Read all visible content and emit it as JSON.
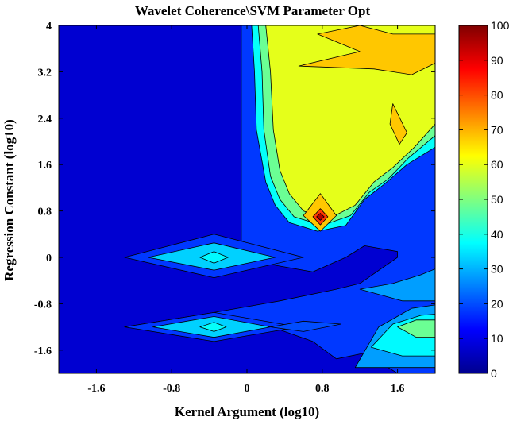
{
  "chart_data": {
    "type": "heatmap",
    "title": "Wavelet Coherence\\SVM Parameter Opt",
    "xlabel": "Kernel Argument (log10)",
    "ylabel": "Regression Constant (log10)",
    "xlim": [
      -2.0,
      2.0
    ],
    "ylim": [
      -2.0,
      4.0
    ],
    "xticks": [
      "-1.6",
      "-0.8",
      "0",
      "0.8",
      "1.6"
    ],
    "xtick_values": [
      -1.6,
      -0.8,
      0,
      0.8,
      1.6
    ],
    "yticks": [
      "4",
      "3.2",
      "2.4",
      "1.6",
      "0.8",
      "0",
      "-0.8",
      "-1.6"
    ],
    "ytick_values": [
      4,
      3.2,
      2.4,
      1.6,
      0.8,
      0,
      -0.8,
      -1.6
    ],
    "colorbar": {
      "range": [
        0,
        100
      ],
      "ticks": [
        "0",
        "10",
        "20",
        "30",
        "40",
        "50",
        "60",
        "70",
        "80",
        "90",
        "100"
      ],
      "tick_values": [
        0,
        10,
        20,
        30,
        40,
        50,
        60,
        70,
        80,
        90,
        100
      ],
      "colormap": "jet"
    },
    "regions": [
      {
        "level": 8,
        "points": [
          [
            -2,
            -2
          ],
          [
            2,
            -2
          ],
          [
            2,
            4
          ],
          [
            -2,
            4
          ]
        ]
      },
      {
        "level": 18,
        "points": [
          [
            -0.06,
            4
          ],
          [
            2,
            4
          ],
          [
            2,
            -2
          ],
          [
            1.6,
            -2
          ],
          [
            1.25,
            -1.65
          ],
          [
            0.95,
            -1.75
          ],
          [
            0.7,
            -1.45
          ],
          [
            0.35,
            -1.25
          ],
          [
            -0.35,
            -1.25
          ],
          [
            -1.3,
            -1.2
          ],
          [
            -0.35,
            -0.95
          ],
          [
            0.35,
            -0.75
          ],
          [
            0.95,
            -0.55
          ],
          [
            1.2,
            -0.45
          ],
          [
            1.6,
            0.0
          ],
          [
            1.6,
            0.1
          ],
          [
            1.25,
            0.2
          ],
          [
            1.05,
            0.0
          ],
          [
            0.7,
            -0.25
          ],
          [
            0.35,
            -0.15
          ],
          [
            -0.3,
            0.05
          ],
          [
            -0.06,
            0.25
          ]
        ]
      },
      {
        "level": 18,
        "points": [
          [
            -1.3,
            0.0
          ],
          [
            -0.35,
            0.4
          ],
          [
            0.6,
            0.0
          ],
          [
            -0.35,
            -0.35
          ]
        ]
      },
      {
        "level": 38,
        "points": [
          [
            0.05,
            4
          ],
          [
            2,
            4
          ],
          [
            2,
            1.9
          ],
          [
            1.7,
            1.6
          ],
          [
            1.45,
            1.25
          ],
          [
            1.25,
            1.0
          ],
          [
            1.05,
            0.55
          ],
          [
            0.75,
            0.45
          ],
          [
            0.45,
            0.6
          ],
          [
            0.3,
            0.9
          ],
          [
            0.2,
            1.3
          ],
          [
            0.1,
            2.2
          ],
          [
            0.08,
            3.2
          ]
        ]
      },
      {
        "level": 48,
        "points": [
          [
            0.12,
            4
          ],
          [
            2,
            4
          ],
          [
            2,
            2.1
          ],
          [
            1.72,
            1.72
          ],
          [
            1.5,
            1.35
          ],
          [
            1.3,
            1.12
          ],
          [
            1.1,
            0.72
          ],
          [
            0.8,
            0.55
          ],
          [
            0.5,
            0.7
          ],
          [
            0.35,
            1.0
          ],
          [
            0.25,
            1.4
          ],
          [
            0.18,
            2.2
          ],
          [
            0.16,
            3.2
          ]
        ]
      },
      {
        "level": 60,
        "points": [
          [
            0.2,
            4
          ],
          [
            2,
            4
          ],
          [
            2,
            2.3
          ],
          [
            1.78,
            1.9
          ],
          [
            1.55,
            1.55
          ],
          [
            1.35,
            1.3
          ],
          [
            1.15,
            0.9
          ],
          [
            0.85,
            0.65
          ],
          [
            0.6,
            0.8
          ],
          [
            0.45,
            1.1
          ],
          [
            0.35,
            1.5
          ],
          [
            0.28,
            2.2
          ],
          [
            0.25,
            3.2
          ]
        ]
      },
      {
        "level": 33,
        "points": [
          [
            -1.05,
            0.0
          ],
          [
            -0.35,
            0.25
          ],
          [
            0.3,
            0.0
          ],
          [
            -0.35,
            -0.22
          ]
        ]
      },
      {
        "level": 37,
        "points": [
          [
            -0.5,
            0.0
          ],
          [
            -0.35,
            0.1
          ],
          [
            -0.2,
            0.0
          ],
          [
            -0.35,
            -0.1
          ]
        ]
      },
      {
        "level": 18,
        "points": [
          [
            -1.3,
            -1.2
          ],
          [
            -0.35,
            -0.95
          ],
          [
            0.55,
            -1.2
          ],
          [
            -0.35,
            -1.45
          ]
        ]
      },
      {
        "level": 33,
        "points": [
          [
            -1.0,
            -1.2
          ],
          [
            -0.35,
            -1.02
          ],
          [
            0.25,
            -1.2
          ],
          [
            -0.35,
            -1.38
          ]
        ]
      },
      {
        "level": 38,
        "points": [
          [
            -0.5,
            -1.2
          ],
          [
            -0.35,
            -1.12
          ],
          [
            -0.22,
            -1.2
          ],
          [
            -0.35,
            -1.28
          ]
        ]
      },
      {
        "level": 20,
        "points": [
          [
            0.25,
            -1.2
          ],
          [
            0.6,
            -1.1
          ],
          [
            1.0,
            -1.15
          ],
          [
            0.6,
            -1.28
          ]
        ]
      },
      {
        "level": 28,
        "points": [
          [
            1.15,
            -1.9
          ],
          [
            1.4,
            -1.2
          ],
          [
            1.75,
            -0.88
          ],
          [
            2,
            -0.82
          ],
          [
            2,
            -1.9
          ]
        ]
      },
      {
        "level": 37,
        "points": [
          [
            1.32,
            -1.55
          ],
          [
            1.55,
            -1.15
          ],
          [
            1.85,
            -1.0
          ],
          [
            2,
            -0.98
          ],
          [
            2,
            -1.7
          ],
          [
            1.65,
            -1.7
          ]
        ]
      },
      {
        "level": 48,
        "points": [
          [
            1.6,
            -1.2
          ],
          [
            1.8,
            -1.08
          ],
          [
            2,
            -1.08
          ],
          [
            2,
            -1.38
          ],
          [
            1.8,
            -1.38
          ]
        ]
      },
      {
        "level": 28,
        "points": [
          [
            1.2,
            -0.55
          ],
          [
            1.55,
            -0.45
          ],
          [
            1.85,
            -0.3
          ],
          [
            2,
            -0.2
          ],
          [
            2,
            -0.75
          ],
          [
            1.65,
            -0.75
          ]
        ]
      },
      {
        "level": 68,
        "points": [
          [
            1.2,
            4
          ],
          [
            1.55,
            3.85
          ],
          [
            2,
            3.85
          ],
          [
            2,
            3.35
          ],
          [
            1.75,
            3.15
          ],
          [
            1.35,
            3.25
          ],
          [
            0.55,
            3.3
          ],
          [
            1.2,
            3.55
          ],
          [
            0.75,
            3.85
          ]
        ]
      },
      {
        "level": 68,
        "points": [
          [
            1.55,
            2.65
          ],
          [
            1.7,
            2.15
          ],
          [
            1.62,
            1.95
          ],
          [
            1.52,
            2.3
          ]
        ]
      },
      {
        "level": 68,
        "points": [
          [
            0.78,
            1.1
          ],
          [
            0.95,
            0.72
          ],
          [
            0.78,
            0.45
          ],
          [
            0.6,
            0.72
          ]
        ]
      },
      {
        "level": 82,
        "points": [
          [
            0.78,
            0.84
          ],
          [
            0.86,
            0.7
          ],
          [
            0.78,
            0.56
          ],
          [
            0.7,
            0.7
          ]
        ]
      },
      {
        "level": 95,
        "points": [
          [
            0.78,
            0.76
          ],
          [
            0.82,
            0.7
          ],
          [
            0.78,
            0.64
          ],
          [
            0.74,
            0.7
          ]
        ]
      }
    ]
  }
}
